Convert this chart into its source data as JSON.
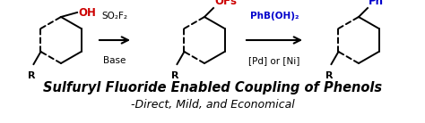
{
  "bg_color": "#ffffff",
  "title_text": "Sulfuryl Fluoride Enabled Coupling of Phenols",
  "subtitle_text": "-Direct, Mild, and Economical",
  "title_fontsize": 10.5,
  "subtitle_fontsize": 9,
  "arrow1_label_top": "SO₂F₂",
  "arrow1_label_bot": "Base",
  "arrow2_label_top": "PhB(OH)₂",
  "arrow2_label_bot": "[Pd] or [Ni]",
  "oh_color": "#cc0000",
  "ofs_color": "#cc0000",
  "ph_color": "#0000cc",
  "black": "#000000"
}
